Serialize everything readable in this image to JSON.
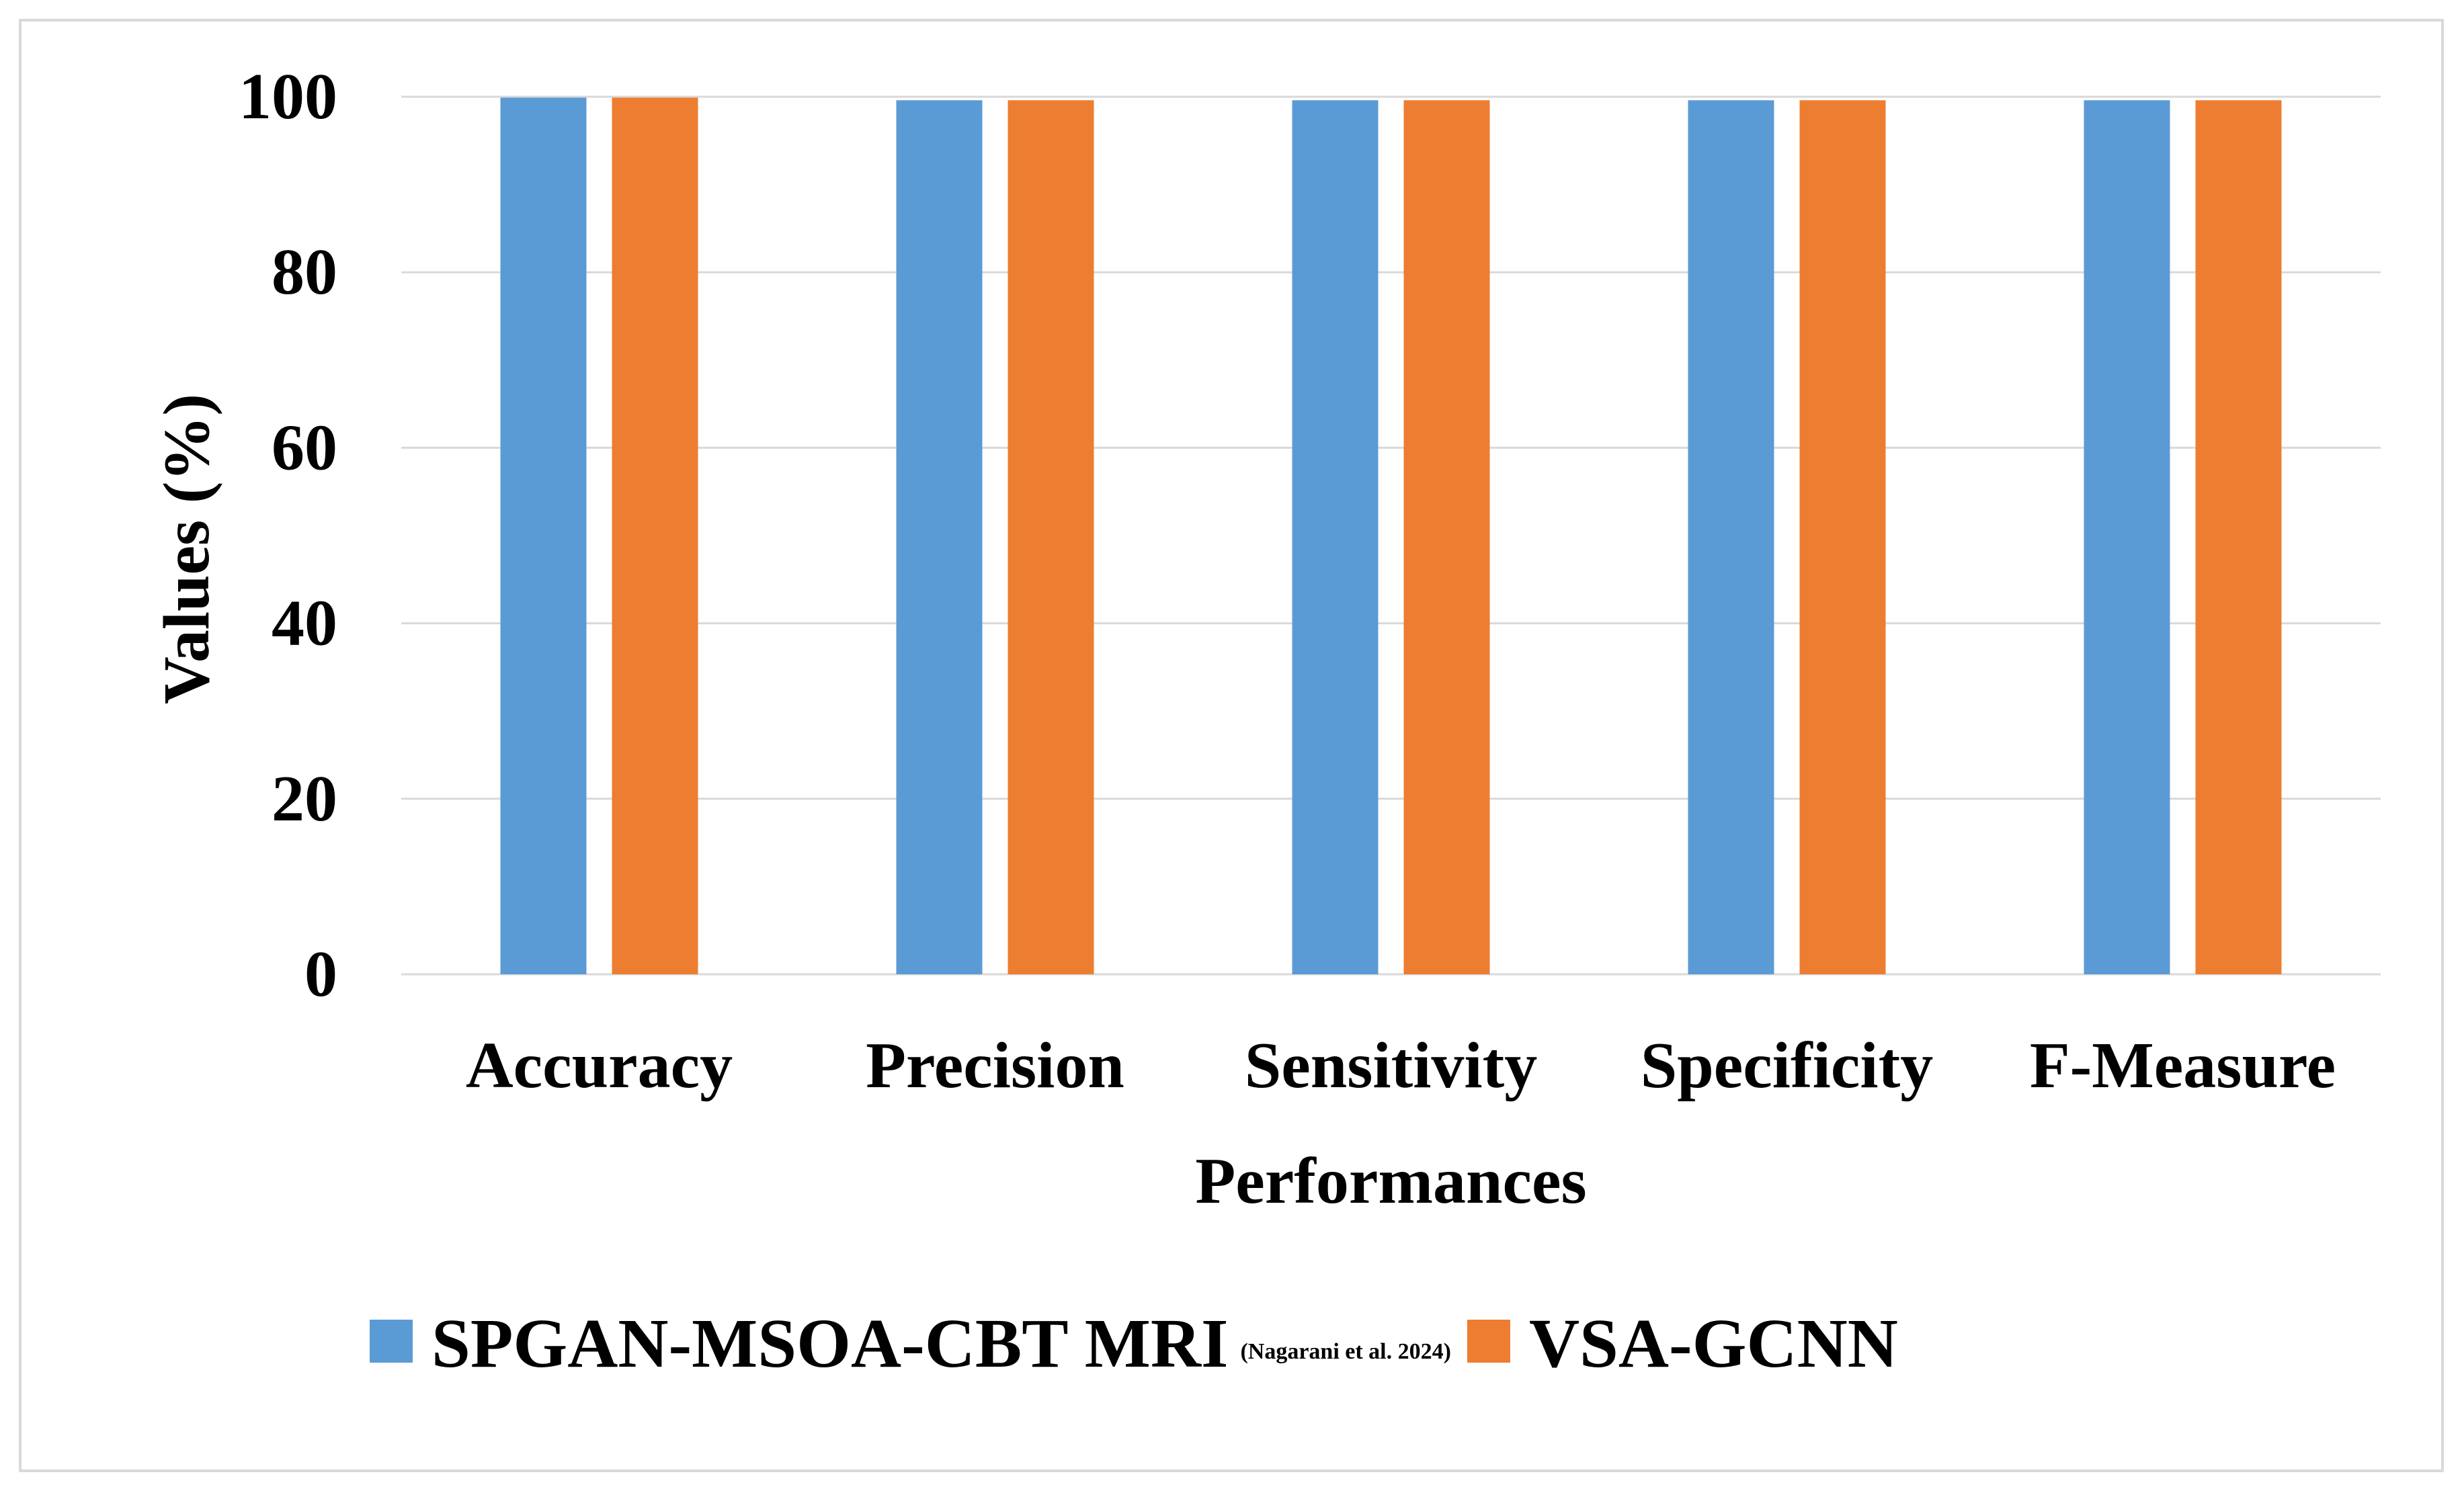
{
  "chart_data": {
    "type": "bar",
    "title": "",
    "xlabel": "Performances",
    "ylabel": "Values (%)",
    "ylim": [
      0,
      100
    ],
    "yticks": [
      0,
      20,
      40,
      60,
      80,
      100
    ],
    "grid": true,
    "legend_position": "bottom",
    "categories": [
      "Accuracy",
      "Precision",
      "Sensitivity",
      "Specificity",
      "F-Measure"
    ],
    "series": [
      {
        "name": "SPGAN-MSOA-CBT MRI",
        "note": "(Nagarani et al. 2024)",
        "color": "#5b9bd5",
        "values": [
          99.9,
          99.6,
          99.6,
          99.6,
          99.6
        ]
      },
      {
        "name": "VSA-GCNN",
        "note": "",
        "color": "#ed7d31",
        "values": [
          99.9,
          99.6,
          99.6,
          99.6,
          99.6
        ]
      }
    ],
    "gridline_color": "#d9d9d9"
  }
}
